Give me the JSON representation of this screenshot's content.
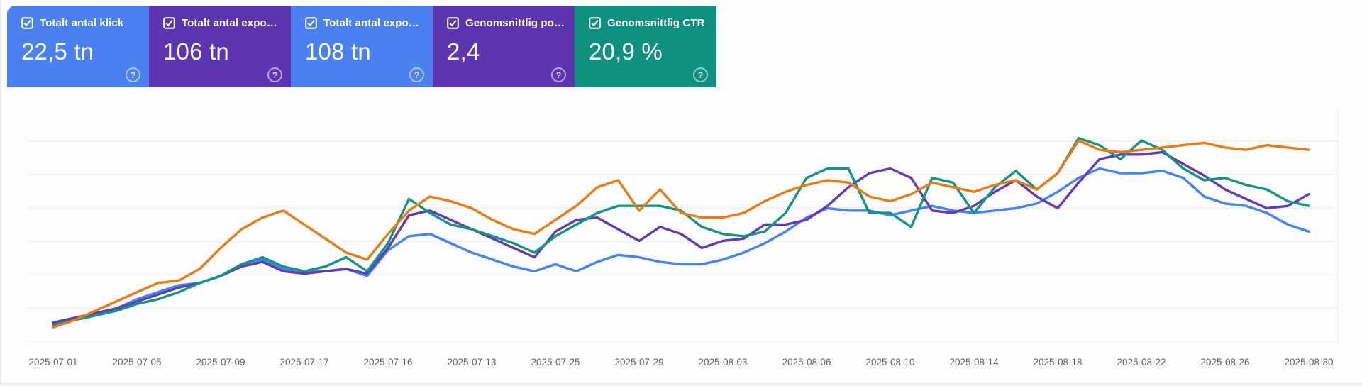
{
  "cards": [
    {
      "label": "Totalt antal klick",
      "value": "22,5 tn",
      "color": "#4b80f0",
      "checked": true,
      "help_glyph": "?"
    },
    {
      "label": "Totalt antal expon…",
      "value": "106 tn",
      "color": "#5e35b1",
      "checked": true,
      "help_glyph": "?"
    },
    {
      "label": "Totalt antal expon…",
      "value": "108 tn",
      "color": "#4b80f0",
      "checked": true,
      "help_glyph": "?"
    },
    {
      "label": "Genomsnittlig po…",
      "value": "2,4",
      "color": "#5e35b1",
      "checked": true,
      "help_glyph": "?"
    },
    {
      "label": "Genomsnittlig CTR",
      "value": "20,9 %",
      "color": "#0f9180",
      "checked": true,
      "help_glyph": "?"
    }
  ],
  "chart_data": {
    "type": "line",
    "grid": "horizontal",
    "legend_position": "none",
    "y_axis_visible": false,
    "ylim": [
      0,
      100
    ],
    "x_tick_labels": [
      "2025-07-01",
      "2025-07-05",
      "2025-07-09",
      "2025-07-17",
      "2025-07-16",
      "2025-07-13",
      "2025-07-25",
      "2025-07-29",
      "2025-08-03",
      "2025-08-06",
      "2025-08-10",
      "2025-08-14",
      "2025-08-18",
      "2025-08-22",
      "2025-08-26",
      "2025-08-30"
    ],
    "series": [
      {
        "name": "Totalt antal klick",
        "color": "#4285f4",
        "values": [
          8,
          10,
          12,
          14,
          18,
          21,
          24,
          25,
          28,
          33,
          35,
          31,
          30,
          30,
          31,
          28,
          39,
          45,
          46,
          42,
          38,
          35,
          32,
          30,
          33,
          30,
          34,
          37,
          36,
          34,
          33,
          33,
          35,
          38,
          42,
          47,
          53,
          57,
          56,
          56,
          54,
          56,
          58,
          56,
          55,
          56,
          57,
          59,
          64,
          70,
          74,
          72,
          72,
          73,
          70,
          62,
          59,
          58,
          55,
          50,
          47
        ]
      },
      {
        "name": "Totalt antal exponeringar",
        "color": "#6639b7",
        "values": [
          8,
          10,
          12,
          14,
          17,
          20,
          23,
          25,
          28,
          32,
          34,
          30,
          29,
          30,
          31,
          29,
          40,
          54,
          56,
          52,
          48,
          44,
          40,
          36,
          47,
          52,
          53,
          48,
          43,
          49,
          46,
          40,
          43,
          44,
          50,
          50,
          52,
          58,
          66,
          72,
          74,
          70,
          56,
          55,
          58,
          64,
          69,
          62,
          57,
          68,
          78,
          80,
          80,
          81,
          76,
          71,
          65,
          61,
          57,
          58,
          63
        ]
      },
      {
        "name": "Genomsnittlig CTR",
        "color": "#12967f",
        "values": [
          7,
          9,
          11,
          13,
          16,
          18,
          21,
          25,
          28,
          33,
          36,
          32,
          30,
          32,
          36,
          30,
          42,
          61,
          55,
          50,
          48,
          45,
          42,
          38,
          45,
          50,
          55,
          58,
          58,
          58,
          56,
          49,
          46,
          45,
          47,
          55,
          70,
          74,
          74,
          55,
          55,
          49,
          70,
          68,
          55,
          66,
          73,
          65,
          72,
          87,
          84,
          78,
          86,
          82,
          74,
          69,
          70,
          67,
          65,
          60,
          58
        ]
      },
      {
        "name": "Genomsnittlig position",
        "color": "#ec7b16",
        "values": [
          6,
          9,
          13,
          17,
          21,
          25,
          26,
          31,
          40,
          48,
          53,
          56,
          50,
          44,
          38,
          35,
          46,
          56,
          62,
          60,
          57,
          52,
          48,
          46,
          52,
          58,
          66,
          69,
          56,
          65,
          55,
          53,
          53,
          55,
          60,
          64,
          67,
          69,
          68,
          62,
          60,
          63,
          68,
          66,
          64,
          67,
          69,
          65,
          72,
          86,
          82,
          81,
          82,
          83,
          84,
          85,
          83,
          82,
          84,
          83,
          82
        ]
      }
    ]
  }
}
